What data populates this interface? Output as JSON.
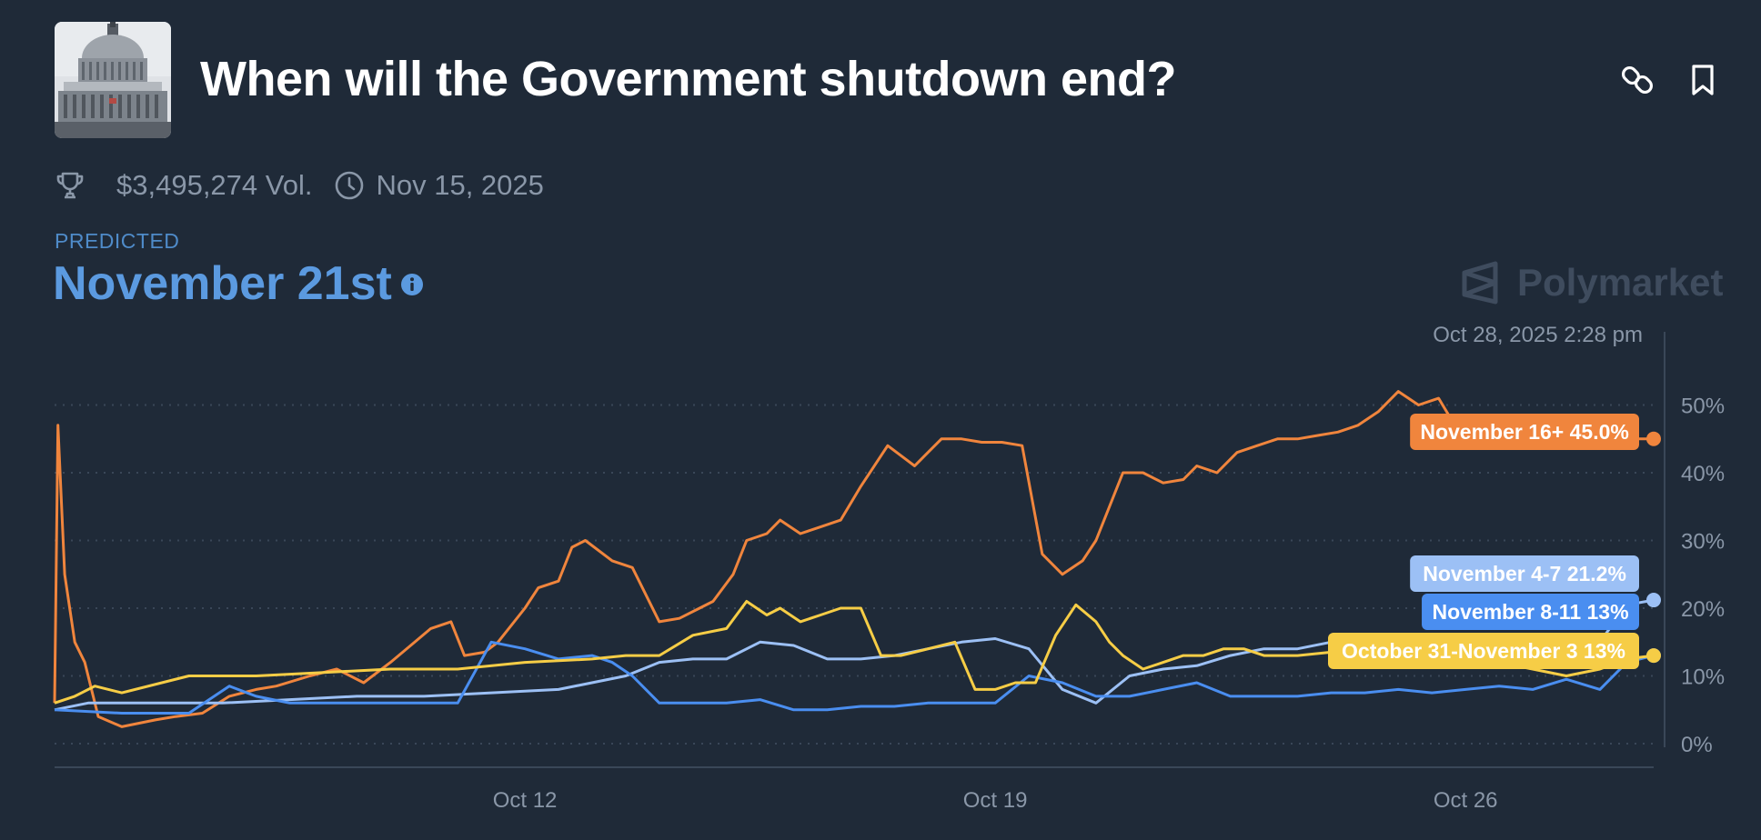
{
  "market": {
    "title": "When will the Government shutdown end?",
    "volume": "$3,495,274 Vol.",
    "end_date": "Nov 15, 2025"
  },
  "predicted": {
    "label": "PREDICTED",
    "value": "November 21st"
  },
  "brand": {
    "name": "Polymarket"
  },
  "chart_data": {
    "type": "line",
    "timestamp": "Oct 28, 2025 2:28 pm",
    "x_unit": "days since Oct 5, 2025",
    "xlim": [
      0,
      23.8
    ],
    "ylim": [
      0,
      55
    ],
    "yticks": [
      0,
      10,
      20,
      30,
      40,
      50
    ],
    "ytick_labels": [
      "0%",
      "10%",
      "20%",
      "30%",
      "40%",
      "50%"
    ],
    "xticks": [
      {
        "x": 7,
        "label": "Oct 12"
      },
      {
        "x": 14,
        "label": "Oct 19"
      },
      {
        "x": 21,
        "label": "Oct 26"
      }
    ],
    "grid": true,
    "series": [
      {
        "name": "November 16+",
        "color": "#f0853d",
        "label": "November 16+ 45.0%",
        "last_value": 45.0,
        "x": [
          0,
          0.05,
          0.15,
          0.3,
          0.45,
          0.65,
          1.0,
          1.5,
          1.8,
          2.2,
          2.6,
          3.0,
          3.3,
          3.8,
          4.2,
          4.6,
          5.0,
          5.3,
          5.6,
          5.9,
          6.1,
          6.4,
          6.6,
          7.0,
          7.2,
          7.5,
          7.7,
          7.9,
          8.3,
          8.6,
          9.0,
          9.3,
          9.6,
          9.8,
          10.1,
          10.3,
          10.6,
          10.8,
          11.1,
          11.4,
          11.7,
          12.0,
          12.4,
          12.8,
          13.2,
          13.5,
          13.8,
          14.1,
          14.4,
          14.7,
          15.0,
          15.3,
          15.5,
          15.7,
          15.9,
          16.2,
          16.5,
          16.8,
          17.0,
          17.3,
          17.6,
          17.9,
          18.2,
          18.5,
          18.8,
          19.1,
          19.4,
          19.7,
          20.0,
          20.3,
          20.6,
          20.9,
          21.2,
          21.5,
          21.8,
          22.0,
          22.2,
          22.5,
          22.8,
          23.1,
          23.4,
          23.8
        ],
        "y": [
          6,
          47,
          25,
          15,
          12,
          4,
          2.5,
          3.5,
          4,
          4.5,
          7,
          8,
          8.5,
          10,
          11,
          9,
          12,
          14.5,
          17,
          18,
          13,
          13.5,
          15,
          20,
          23,
          24,
          29,
          30,
          27,
          26,
          18,
          18.5,
          20,
          21,
          25,
          30,
          31,
          33,
          31,
          32,
          33,
          38,
          44,
          41,
          45,
          45,
          44.5,
          44.5,
          44,
          28,
          25,
          27,
          30,
          35,
          40,
          40,
          38.5,
          39,
          41,
          40,
          43,
          44,
          45,
          45,
          45.5,
          46,
          47,
          49,
          52,
          50,
          51,
          46,
          45,
          45,
          45.5,
          45,
          45.2,
          45,
          45,
          45,
          45,
          45
        ]
      },
      {
        "name": "November 4-7",
        "color": "#9cc0f5",
        "label": "November 4-7 21.2%",
        "last_value": 21.2,
        "x": [
          0,
          0.5,
          1.5,
          2.5,
          3.5,
          4.5,
          5.5,
          6.5,
          7.5,
          8.5,
          9.0,
          9.5,
          10.0,
          10.5,
          11.0,
          11.5,
          12.0,
          12.5,
          13.0,
          13.5,
          14.0,
          14.5,
          15.0,
          15.5,
          16.0,
          16.5,
          17.0,
          17.5,
          18.0,
          18.5,
          19.0,
          19.5,
          20.0,
          20.5,
          21.0,
          21.5,
          22.0,
          22.5,
          23.0,
          23.4,
          23.8
        ],
        "y": [
          5,
          6,
          6,
          6,
          6.5,
          7,
          7,
          7.5,
          8,
          10,
          12,
          12.5,
          12.5,
          15,
          14.5,
          12.5,
          12.5,
          13,
          14,
          15,
          15.5,
          14,
          8,
          6,
          10,
          11,
          11.5,
          13,
          14,
          14,
          15,
          14,
          14,
          14.5,
          15,
          14,
          14,
          14.5,
          15,
          20.5,
          21.2
        ]
      },
      {
        "name": "November 8-11",
        "color": "#4a8ef0",
        "label": "November 8-11 13%",
        "last_value": 13,
        "x": [
          0,
          1.0,
          2.0,
          2.6,
          3.0,
          3.5,
          4.5,
          5.0,
          5.5,
          6.0,
          6.5,
          7.0,
          7.5,
          8.0,
          8.3,
          8.6,
          9.0,
          9.5,
          10.0,
          10.5,
          11.0,
          11.5,
          12.0,
          12.5,
          13.0,
          13.5,
          14.0,
          14.5,
          15.0,
          15.5,
          16.0,
          16.5,
          17.0,
          17.5,
          18.0,
          18.5,
          19.0,
          19.5,
          20.0,
          20.5,
          21.0,
          21.5,
          22.0,
          22.5,
          23.0,
          23.4,
          23.8
        ],
        "y": [
          5,
          4.5,
          4.5,
          8.5,
          7,
          6,
          6,
          6,
          6,
          6,
          15,
          14,
          12.5,
          13,
          12,
          10,
          6,
          6,
          6,
          6.5,
          5,
          5,
          5.5,
          5.5,
          6,
          6,
          6,
          10,
          9,
          7,
          7,
          8,
          9,
          7,
          7,
          7,
          7.5,
          7.5,
          8,
          7.5,
          8,
          8.5,
          8,
          9.5,
          8,
          12,
          13
        ]
      },
      {
        "name": "October 31-November 3",
        "color": "#f6cd46",
        "label": "October 31-November 3 13%",
        "last_value": 13,
        "x": [
          0,
          0.3,
          0.6,
          1.0,
          2.0,
          3.0,
          4.0,
          5.0,
          6.0,
          7.0,
          8.0,
          8.5,
          9.0,
          9.5,
          10.0,
          10.3,
          10.6,
          10.8,
          11.1,
          11.4,
          11.7,
          12.0,
          12.3,
          12.6,
          13.0,
          13.4,
          13.7,
          14.0,
          14.3,
          14.6,
          14.9,
          15.2,
          15.5,
          15.7,
          15.9,
          16.2,
          16.5,
          16.8,
          17.1,
          17.4,
          17.7,
          18.0,
          18.5,
          19.0,
          19.5,
          20.0,
          20.5,
          21.0,
          21.5,
          22.0,
          22.5,
          23.0,
          23.4,
          23.8
        ],
        "y": [
          6,
          7,
          8.5,
          7.5,
          10,
          10,
          10.5,
          11,
          11,
          12,
          12.5,
          13,
          13,
          16,
          17,
          21,
          19,
          20,
          18,
          19,
          20,
          20,
          13,
          13,
          14,
          15,
          8,
          8,
          9,
          9,
          16,
          20.5,
          18,
          15,
          13,
          11,
          12,
          13,
          13,
          14,
          14,
          13,
          13,
          13.5,
          13,
          12.5,
          12,
          11.5,
          12,
          11,
          10,
          11,
          12.5,
          13
        ]
      }
    ]
  }
}
